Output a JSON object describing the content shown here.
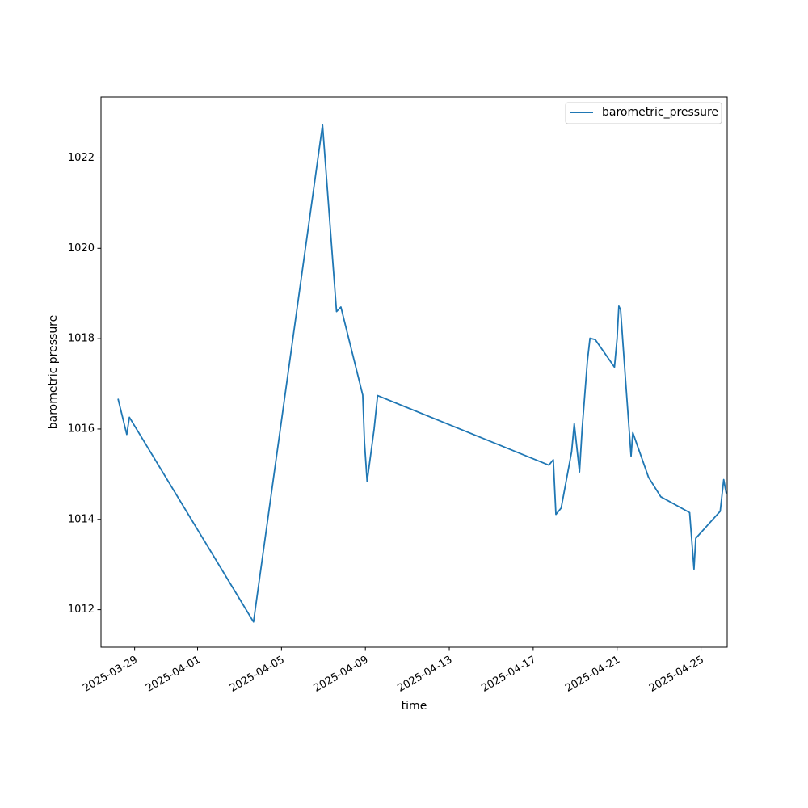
{
  "chart_data": {
    "type": "line",
    "xlabel": "time",
    "ylabel": "barometric pressure",
    "xlim": [
      "2025-03-27T09:30",
      "2025-04-26T06:00"
    ],
    "ylim": [
      1011.17,
      1023.35
    ],
    "x_ticks": [
      "2025-03-29",
      "2025-04-01",
      "2025-04-05",
      "2025-04-09",
      "2025-04-13",
      "2025-04-17",
      "2025-04-21",
      "2025-04-25"
    ],
    "y_ticks": [
      1012,
      1014,
      1016,
      1018,
      1020,
      1022
    ],
    "grid": false,
    "legend": {
      "position": "top-right"
    },
    "series": [
      {
        "name": "barometric_pressure",
        "color": "#1f77b4",
        "points": [
          {
            "x": "2025-03-28T05:00",
            "y": 1016.67
          },
          {
            "x": "2025-03-28T15:00",
            "y": 1015.88
          },
          {
            "x": "2025-03-28T18:00",
            "y": 1016.26
          },
          {
            "x": "2025-04-03T16:00",
            "y": 1011.73
          },
          {
            "x": "2025-04-06T23:00",
            "y": 1022.73
          },
          {
            "x": "2025-04-07T15:00",
            "y": 1018.6
          },
          {
            "x": "2025-04-07T20:00",
            "y": 1018.7
          },
          {
            "x": "2025-04-08T21:00",
            "y": 1016.75
          },
          {
            "x": "2025-04-08T23:00",
            "y": 1015.7
          },
          {
            "x": "2025-04-09T02:00",
            "y": 1014.84
          },
          {
            "x": "2025-04-09T10:00",
            "y": 1016.0
          },
          {
            "x": "2025-04-09T14:00",
            "y": 1016.74
          },
          {
            "x": "2025-04-17T18:00",
            "y": 1015.2
          },
          {
            "x": "2025-04-17T23:00",
            "y": 1015.32
          },
          {
            "x": "2025-04-18T02:00",
            "y": 1014.11
          },
          {
            "x": "2025-04-18T08:00",
            "y": 1014.25
          },
          {
            "x": "2025-04-18T20:00",
            "y": 1015.5
          },
          {
            "x": "2025-04-18T23:00",
            "y": 1016.12
          },
          {
            "x": "2025-04-19T05:00",
            "y": 1015.05
          },
          {
            "x": "2025-04-19T08:00",
            "y": 1016.0
          },
          {
            "x": "2025-04-19T14:00",
            "y": 1017.5
          },
          {
            "x": "2025-04-19T17:00",
            "y": 1018.01
          },
          {
            "x": "2025-04-19T23:00",
            "y": 1017.98
          },
          {
            "x": "2025-04-20T21:00",
            "y": 1017.37
          },
          {
            "x": "2025-04-21T00:00",
            "y": 1018.0
          },
          {
            "x": "2025-04-21T02:00",
            "y": 1018.72
          },
          {
            "x": "2025-04-21T04:00",
            "y": 1018.64
          },
          {
            "x": "2025-04-21T10:00",
            "y": 1017.0
          },
          {
            "x": "2025-04-21T16:00",
            "y": 1015.4
          },
          {
            "x": "2025-04-21T18:00",
            "y": 1015.92
          },
          {
            "x": "2025-04-22T12:00",
            "y": 1014.93
          },
          {
            "x": "2025-04-23T02:00",
            "y": 1014.5
          },
          {
            "x": "2025-04-24T11:00",
            "y": 1014.15
          },
          {
            "x": "2025-04-24T16:00",
            "y": 1012.9
          },
          {
            "x": "2025-04-24T18:00",
            "y": 1013.58
          },
          {
            "x": "2025-04-25T22:00",
            "y": 1014.18
          },
          {
            "x": "2025-04-26T02:00",
            "y": 1014.88
          },
          {
            "x": "2025-04-26T05:00",
            "y": 1014.57
          }
        ]
      }
    ]
  }
}
